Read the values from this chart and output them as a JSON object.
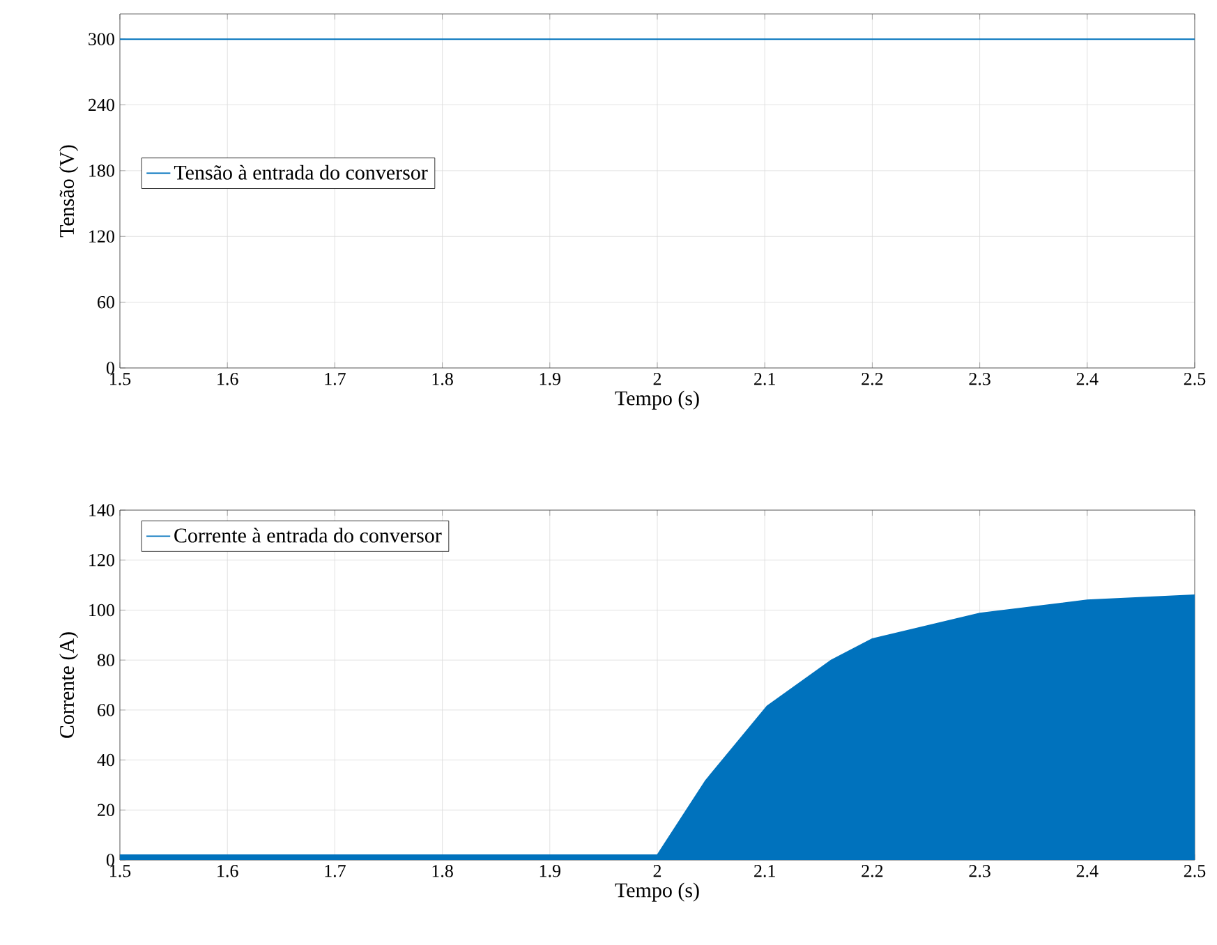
{
  "chart_data": [
    {
      "type": "line",
      "xlabel": "Tempo (s)",
      "ylabel": "Tensão (V)",
      "xlim": [
        1.5,
        2.5
      ],
      "ylim": [
        0,
        323
      ],
      "xticks": [
        1.5,
        1.6,
        1.7,
        1.8,
        1.9,
        {
          "value": 2,
          "label": "2"
        },
        2.1,
        2.2,
        2.3,
        2.4,
        2.5
      ],
      "yticks": [
        0,
        60,
        120,
        180,
        240,
        300
      ],
      "grid": true,
      "legend": "left",
      "series": [
        {
          "name": "Tensão à entrada do conversor",
          "color": "#0072bd",
          "x": [
            1.5,
            2.5
          ],
          "values": [
            300,
            300
          ]
        }
      ]
    },
    {
      "type": "area",
      "xlabel": "Tempo (s)",
      "ylabel": "Corrente (A)",
      "xlim": [
        1.5,
        2.5
      ],
      "ylim": [
        0,
        140
      ],
      "xticks": [
        1.5,
        1.6,
        1.7,
        1.8,
        1.9,
        {
          "value": 2,
          "label": "2"
        },
        2.1,
        2.2,
        2.3,
        2.4,
        2.5
      ],
      "yticks": [
        0,
        20,
        40,
        60,
        80,
        100,
        120,
        140
      ],
      "grid": true,
      "legend": "top left",
      "series": [
        {
          "name": "Corrente à entrada do conversor",
          "color": "#0072bd",
          "x": [
            1.5,
            2.0,
            2.003,
            2.045,
            2.102,
            2.162,
            2.2,
            2.3,
            2.4,
            2.5
          ],
          "values": [
            2,
            2,
            4,
            31.8,
            61.5,
            80,
            88.5,
            98.7,
            104,
            106
          ]
        }
      ]
    }
  ]
}
